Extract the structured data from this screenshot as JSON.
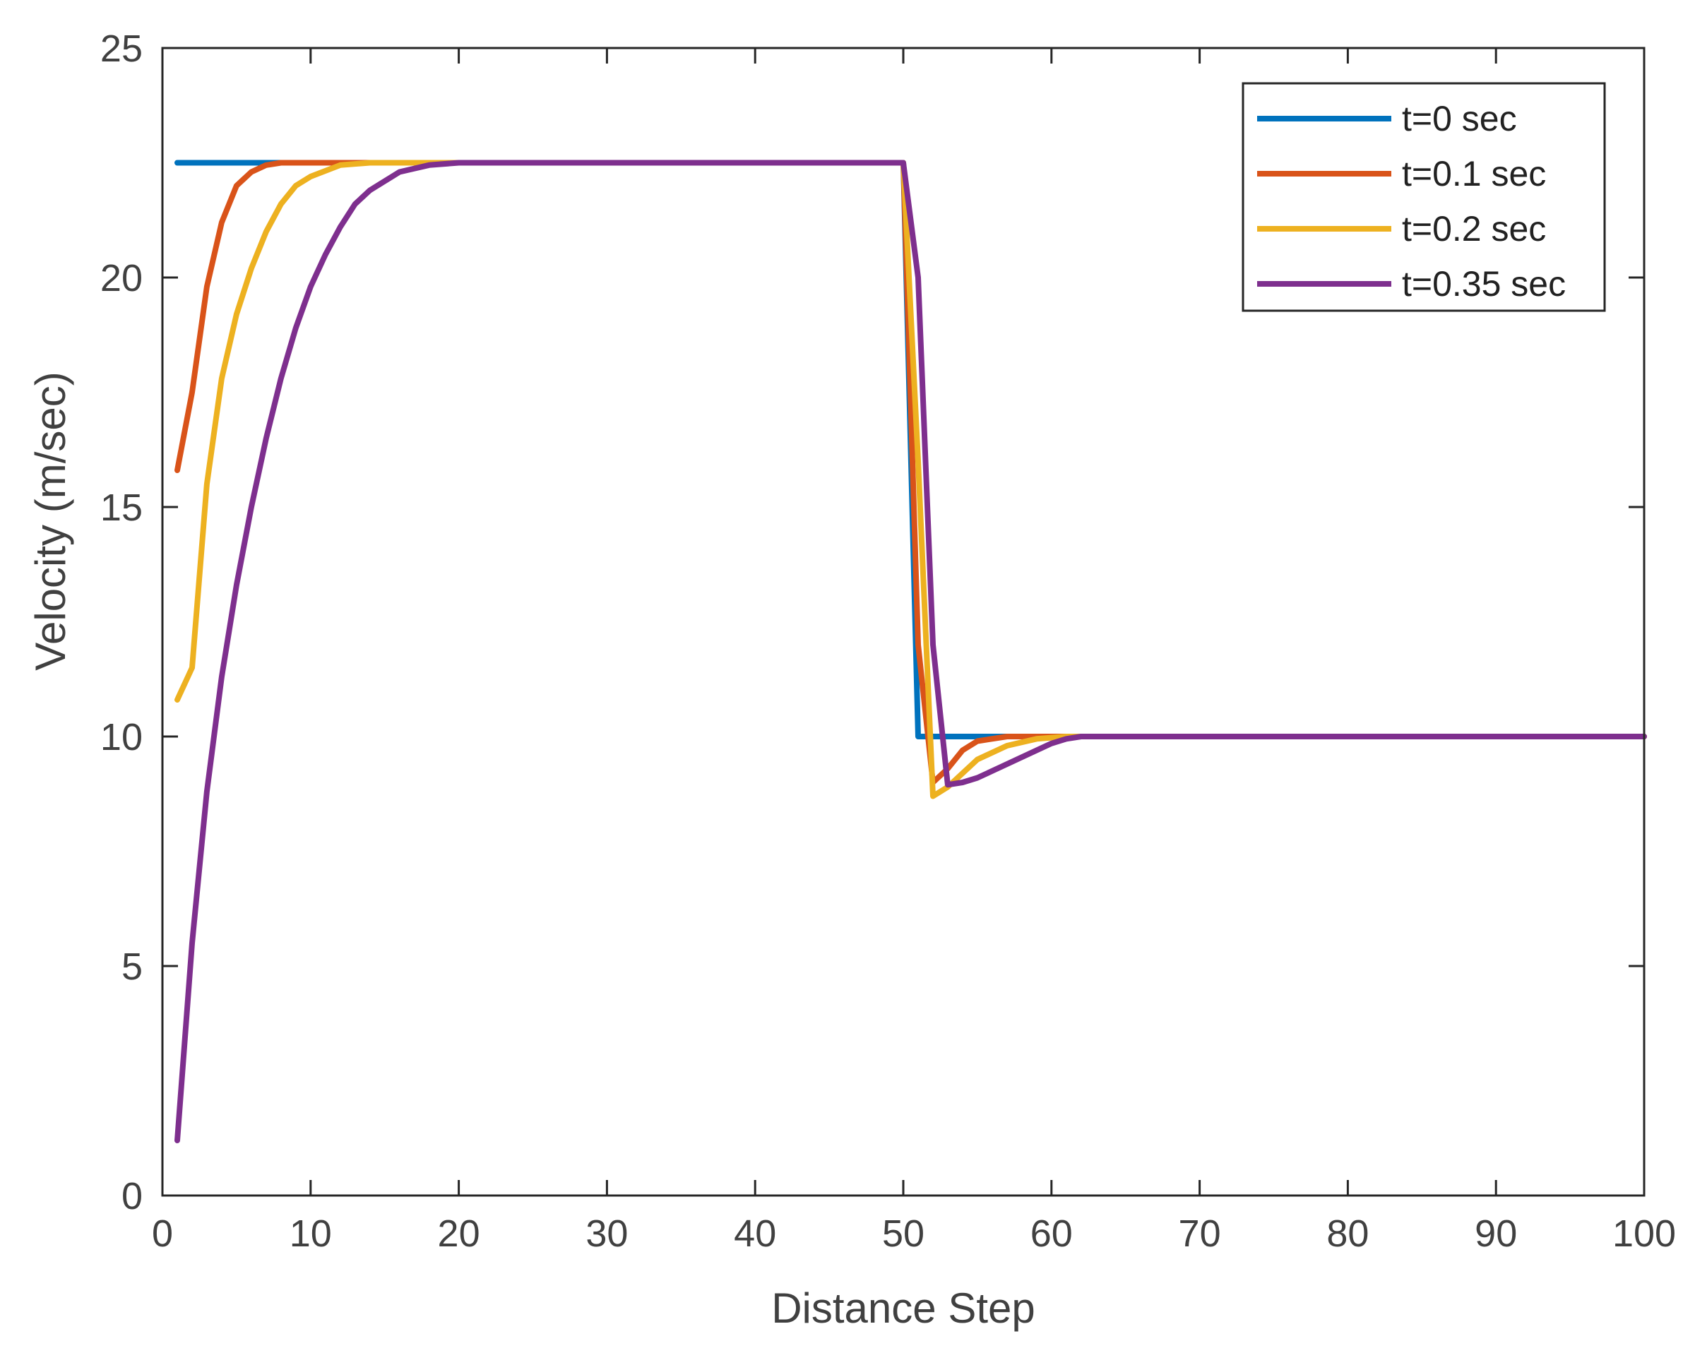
{
  "chart_data": {
    "type": "line",
    "title": "",
    "xlabel": "Distance Step",
    "ylabel": "Velocity (m/sec)",
    "xlim": [
      0,
      100
    ],
    "ylim": [
      0,
      25
    ],
    "xticks": [
      0,
      10,
      20,
      30,
      40,
      50,
      60,
      70,
      80,
      90,
      100
    ],
    "yticks": [
      0,
      5,
      10,
      15,
      20,
      25
    ],
    "xtick_labels": [
      "0",
      "10",
      "20",
      "30",
      "40",
      "50",
      "60",
      "70",
      "80",
      "90",
      "100"
    ],
    "ytick_labels": [
      "0",
      "5",
      "10",
      "15",
      "20",
      "25"
    ],
    "grid": false,
    "legend_position": "top-right",
    "series": [
      {
        "name": "t=0 sec",
        "color": "#0072BD",
        "x": [
          1,
          50,
          51,
          100
        ],
        "y": [
          22.5,
          22.5,
          10,
          10
        ]
      },
      {
        "name": "t=0.1 sec",
        "color": "#D95319",
        "x": [
          1,
          2,
          3,
          4,
          5,
          6,
          7,
          8,
          10,
          12,
          50,
          51,
          52,
          53,
          54,
          55,
          57,
          100
        ],
        "y": [
          15.8,
          17.5,
          19.8,
          21.2,
          22.0,
          22.3,
          22.45,
          22.5,
          22.5,
          22.5,
          22.5,
          12.0,
          9.0,
          9.3,
          9.7,
          9.9,
          10.0,
          10.0
        ]
      },
      {
        "name": "t=0.2 sec",
        "color": "#EDB120",
        "x": [
          1,
          2,
          3,
          4,
          5,
          6,
          7,
          8,
          9,
          10,
          12,
          14,
          16,
          18,
          50,
          51,
          52,
          53,
          54,
          55,
          57,
          59,
          61,
          100
        ],
        "y": [
          10.8,
          11.5,
          15.5,
          17.8,
          19.2,
          20.2,
          21.0,
          21.6,
          22.0,
          22.2,
          22.45,
          22.5,
          22.5,
          22.5,
          22.5,
          16.0,
          8.7,
          8.9,
          9.2,
          9.5,
          9.8,
          9.95,
          10.0,
          10.0
        ]
      },
      {
        "name": "t=0.35 sec",
        "color": "#7E2F8E",
        "x": [
          1,
          2,
          3,
          4,
          5,
          6,
          7,
          8,
          9,
          10,
          11,
          12,
          13,
          14,
          15,
          16,
          18,
          20,
          50,
          51,
          52,
          53,
          54,
          55,
          56,
          57,
          58,
          59,
          60,
          61,
          62,
          64,
          100
        ],
        "y": [
          1.2,
          5.5,
          8.8,
          11.3,
          13.3,
          15.0,
          16.5,
          17.8,
          18.9,
          19.8,
          20.5,
          21.1,
          21.6,
          21.9,
          22.1,
          22.3,
          22.45,
          22.5,
          22.5,
          20.0,
          12.0,
          8.95,
          9.0,
          9.1,
          9.25,
          9.4,
          9.55,
          9.7,
          9.85,
          9.95,
          10.0,
          10.0,
          10.0
        ]
      }
    ]
  }
}
